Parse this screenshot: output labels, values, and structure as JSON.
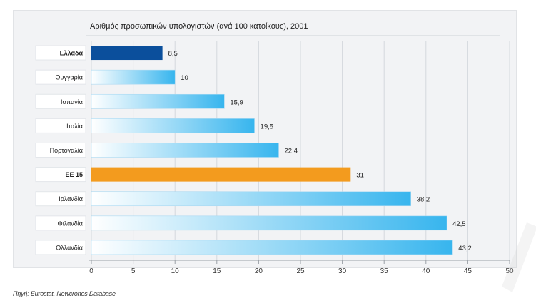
{
  "chart_data": {
    "type": "bar",
    "orientation": "horizontal",
    "title": "Αριθμός προσωπικών υπολογιστών (ανά 100 κατοίκους), 2001",
    "categories": [
      "Ελλάδα",
      "Ουγγαρία",
      "Ισπανία",
      "Ιταλία",
      "Πορτογαλία",
      "ΕΕ 15",
      "Ιρλανδία",
      "Φιλανδία",
      "Ολλανδία"
    ],
    "values": [
      8.5,
      10,
      15.9,
      19.5,
      22.4,
      31,
      38.2,
      42.5,
      43.2
    ],
    "value_labels": [
      "8,5",
      "10",
      "15,9",
      "19,5",
      "22,4",
      "31",
      "38,2",
      "42,5",
      "43,2"
    ],
    "bar_colors": [
      "#0b4f9c",
      "gradient",
      "gradient",
      "gradient",
      "gradient",
      "#f39b1e",
      "gradient",
      "gradient",
      "gradient"
    ],
    "xlim": [
      0,
      50
    ],
    "xticks": [
      "0",
      "5",
      "10",
      "15",
      "20",
      "25",
      "30",
      "35",
      "40",
      "45",
      "50"
    ],
    "xlabel": "",
    "ylabel": "",
    "grid": true
  },
  "source": "Πηγή: Eurostat, Newcronos Database",
  "colors": {
    "gradient_start": "#ffffff",
    "gradient_end": "#37b5ee",
    "greece": "#0b4f9c",
    "eu": "#f39b1e",
    "label_box": "#ffffff"
  }
}
